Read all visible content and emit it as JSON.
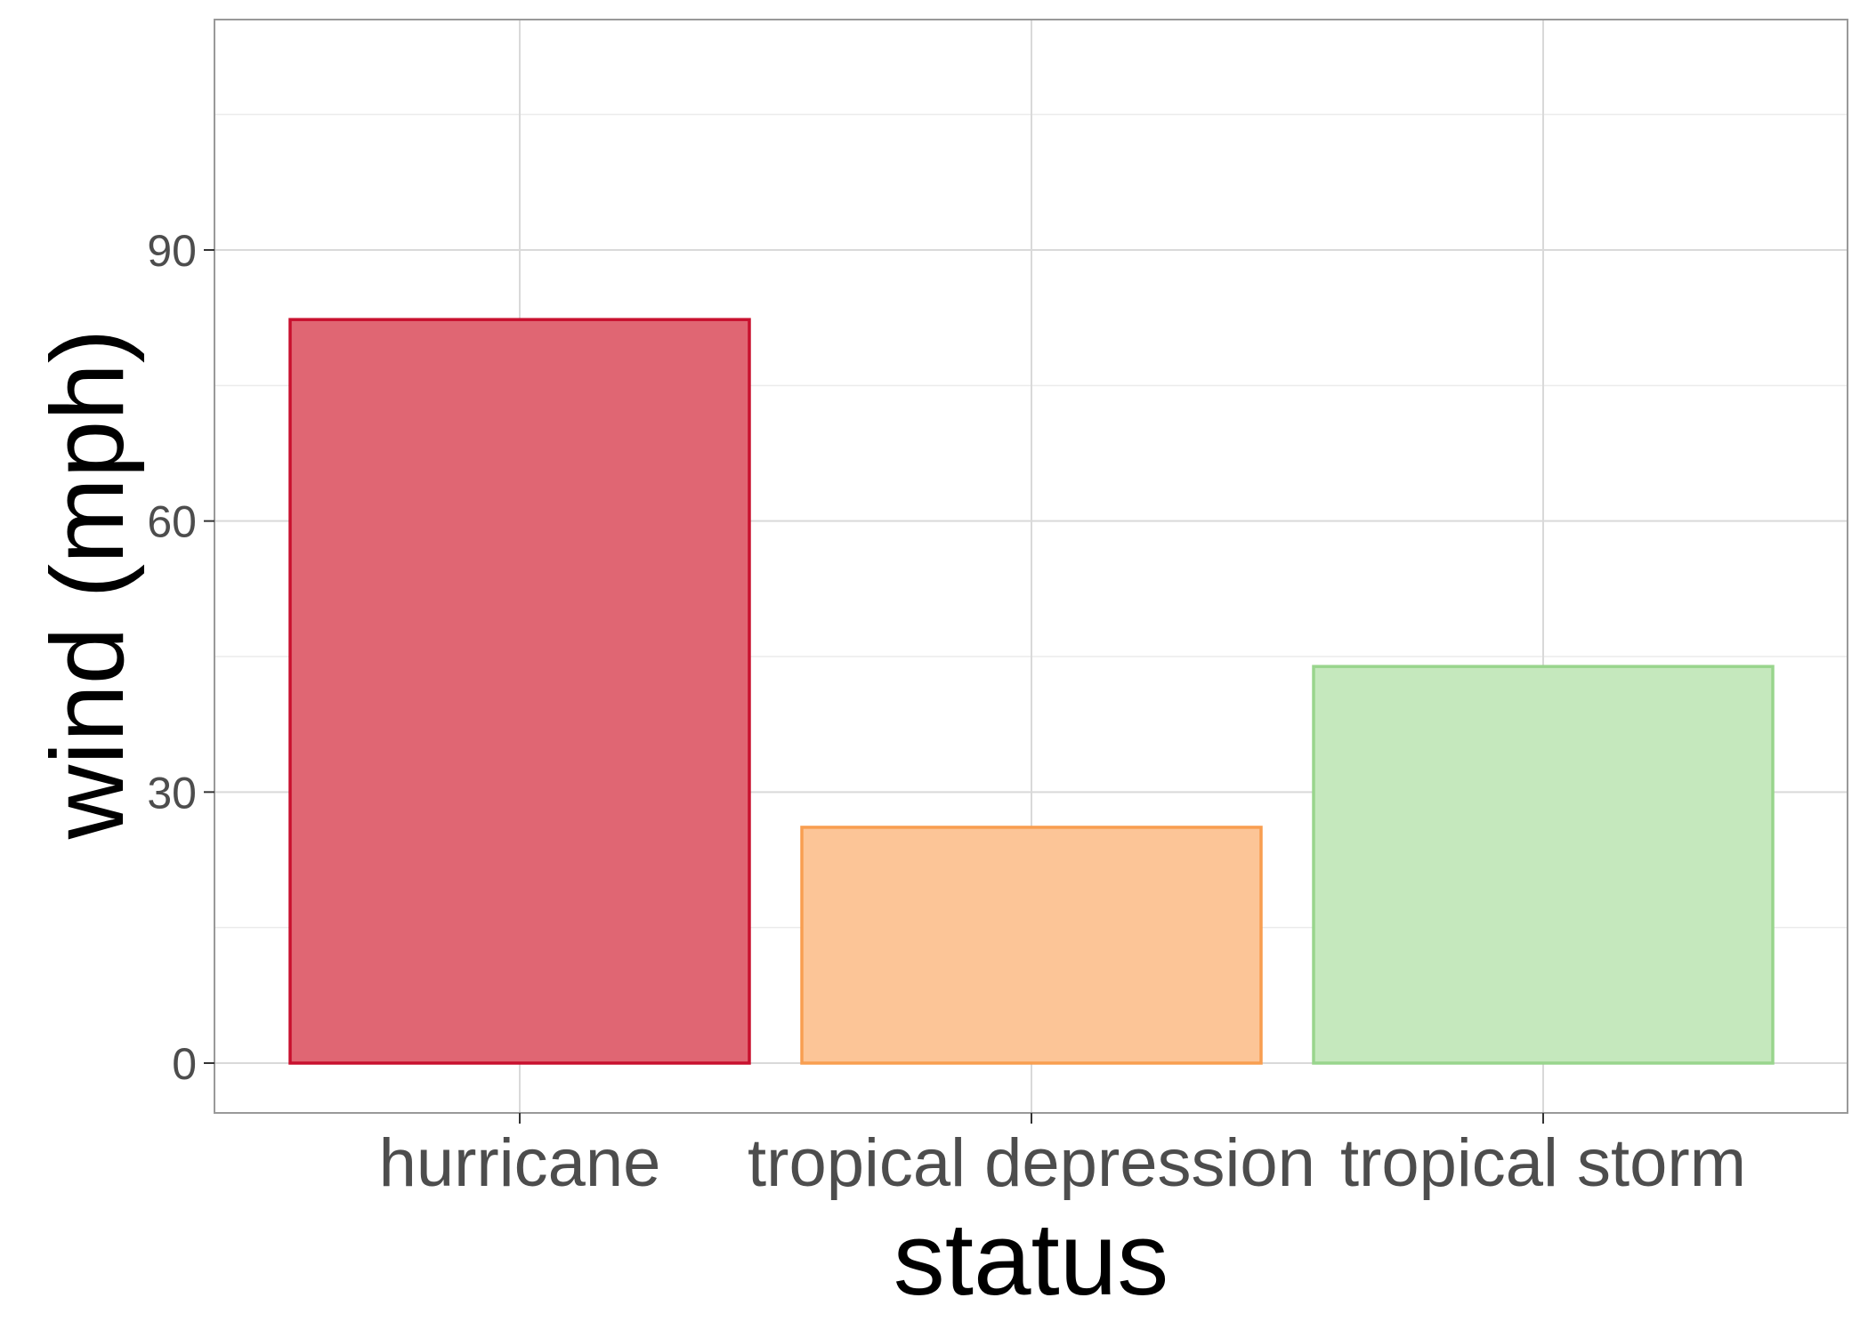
{
  "chart_data": {
    "type": "bar",
    "title": "",
    "xlabel": "status",
    "ylabel": "wind (mph)",
    "categories": [
      "hurricane",
      "tropical depression",
      "tropical storm"
    ],
    "values": [
      82.3,
      26.1,
      43.9
    ],
    "ylim": [
      -5.5,
      115
    ],
    "yticks": [
      0,
      30,
      60,
      90
    ],
    "grid": true,
    "legend": "none",
    "bar_fill": [
      "#e06673",
      "#fcc597",
      "#c5e8bd"
    ],
    "bar_stroke": [
      "#c8102e",
      "#f89e50",
      "#99d58d"
    ],
    "panel_border": "#999999",
    "grid_major": "#d9d9d9",
    "grid_minor": "#ebebeb"
  }
}
